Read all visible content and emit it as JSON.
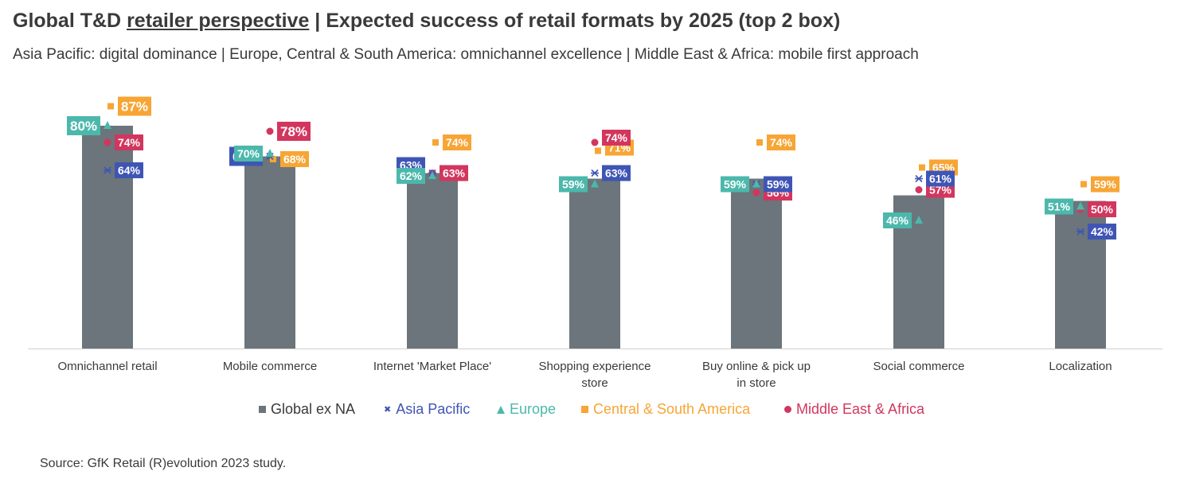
{
  "title_parts": [
    "Global T&D ",
    "retailer perspective",
    " | Expected success of retail formats by 2025 (top 2 box)"
  ],
  "subtitle": "Asia Pacific: digital dominance | Europe, Central & South America: omnichannel excellence | Middle East & Africa: mobile first approach",
  "source": "Source: GfK Retail (R)evolution 2023 study.",
  "colors": {
    "global": "#6b757b",
    "asia": "#3f55b5",
    "europe": "#4cb8ac",
    "csa": "#f7a535",
    "mea": "#d2365e",
    "axis": "#d0d0d0",
    "text": "#3a3a3a"
  },
  "legend": [
    {
      "key": "global",
      "label": "Global ex NA",
      "marker": "square"
    },
    {
      "key": "asia",
      "label": "Asia Pacific",
      "marker": "x"
    },
    {
      "key": "europe",
      "label": "Europe",
      "marker": "triangle"
    },
    {
      "key": "csa",
      "label": "Central & South America",
      "marker": "square"
    },
    {
      "key": "mea",
      "label": "Middle East & Africa",
      "marker": "circle"
    }
  ],
  "chart_data": {
    "type": "bar",
    "categories": [
      "Omnichannel retail",
      "Mobile commerce",
      "Internet 'Market Place'",
      "Shopping experience store",
      "Buy online & pick up in store",
      "Social commerce",
      "Localization"
    ],
    "ylim": [
      0,
      100
    ],
    "series": [
      {
        "name": "Global ex NA",
        "key": "global",
        "values": [
          80,
          69,
          63,
          61,
          61,
          55,
          53
        ]
      },
      {
        "name": "Asia Pacific",
        "key": "asia",
        "values": [
          64,
          69,
          63,
          63,
          59,
          61,
          42
        ]
      },
      {
        "name": "Europe",
        "key": "europe",
        "values": [
          80,
          70,
          62,
          59,
          59,
          46,
          51
        ]
      },
      {
        "name": "Central & South America",
        "key": "csa",
        "values": [
          87,
          68,
          74,
          71,
          74,
          65,
          59
        ]
      },
      {
        "name": "Middle East & Africa",
        "key": "mea",
        "values": [
          74,
          78,
          63,
          74,
          56,
          57,
          50
        ]
      }
    ],
    "data_labels": {
      "global": [],
      "asia": [
        "64%",
        "69%",
        "63%",
        "63%",
        "59%",
        "61%",
        "42%"
      ],
      "europe": [
        "80%",
        "70%",
        "62%",
        "59%",
        "59%",
        "46%",
        "51%"
      ],
      "csa": [
        "87%",
        "68%",
        "74%",
        "71%",
        "74%",
        "65%",
        "59%"
      ],
      "mea": [
        "74%",
        "78%",
        "63%",
        "74%",
        "56%",
        "57%",
        "50%"
      ]
    }
  }
}
